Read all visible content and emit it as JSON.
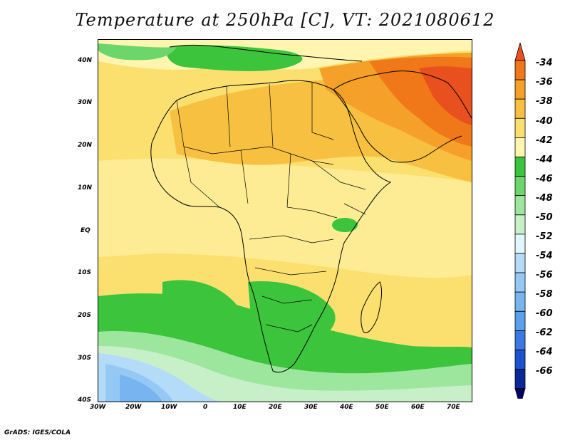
{
  "title": "Temperature at 250hPa [C], VT: 2021080612",
  "credit": "GrADS: IGES/COLA",
  "lat_labels": [
    "40N",
    "30N",
    "20N",
    "10N",
    "EQ",
    "10S",
    "20S",
    "30S",
    "40S"
  ],
  "lon_labels": [
    "30W",
    "20W",
    "10W",
    "0",
    "10E",
    "20E",
    "30E",
    "40E",
    "50E",
    "60E",
    "70E"
  ],
  "colorbar": {
    "labels": [
      "-34",
      "-36",
      "-38",
      "-40",
      "-42",
      "-44",
      "-46",
      "-48",
      "-50",
      "-52",
      "-54",
      "-56",
      "-58",
      "-60",
      "-62",
      "-64",
      "-66"
    ],
    "colors": [
      "#e8501e",
      "#f07818",
      "#f5a028",
      "#f8c040",
      "#fbe070",
      "#fff5b0",
      "#3cc43c",
      "#6cd66c",
      "#9de69d",
      "#c8f0c8",
      "#e2f6fb",
      "#b4dcf8",
      "#96c8f5",
      "#78b4f0",
      "#5aa0eb",
      "#3c78e1",
      "#1e50d2",
      "#0a2896",
      "#000064"
    ],
    "colors_note": "top triangle to bottom triangle"
  }
}
